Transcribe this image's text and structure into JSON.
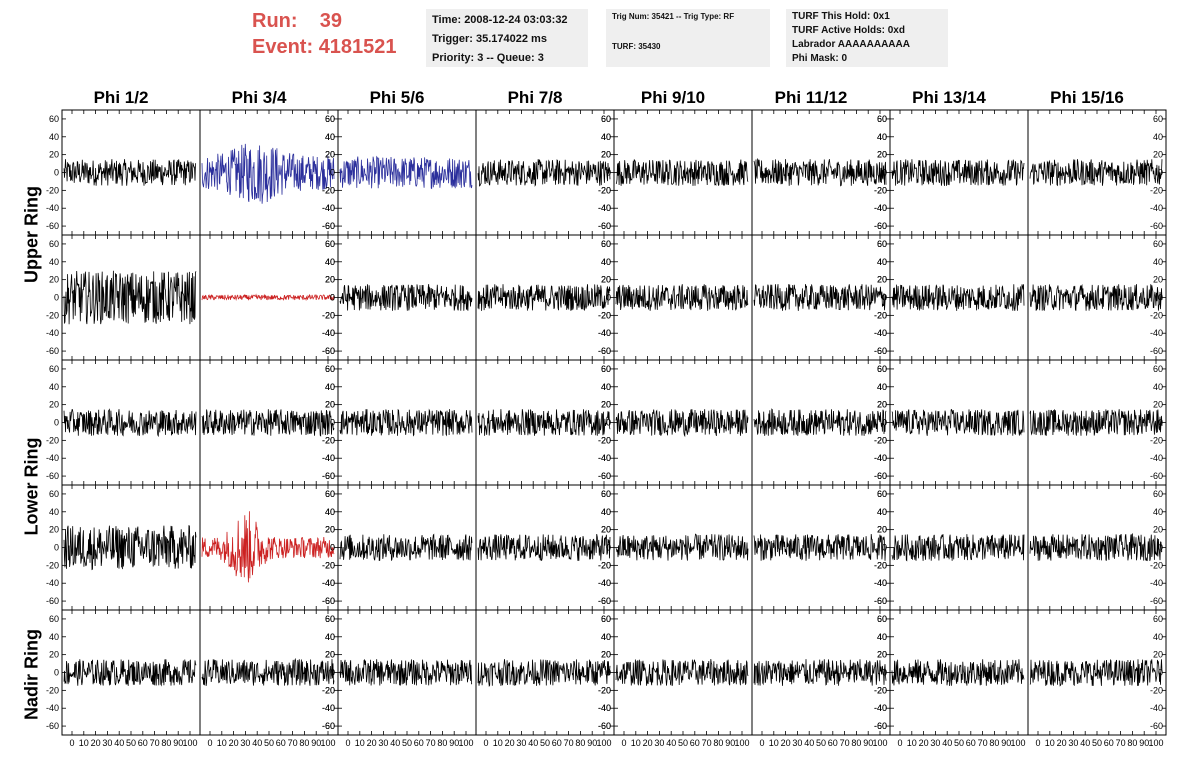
{
  "run_info": {
    "run_label": "Run:",
    "run_value": "39",
    "event_label": "Event:",
    "event_value": "4181521"
  },
  "time_box": {
    "time": "Time: 2008-12-24 03:03:32",
    "trigger": "Trigger: 35.174022 ms",
    "priority": "Priority: 3 -- Queue: 3"
  },
  "trig_box": {
    "trig": "Trig Num: 35421 -- Trig Type: RF",
    "turf": "TURF: 35430"
  },
  "turf_box": {
    "hold": "TURF This Hold: 0x1",
    "active": "TURF Active Holds: 0xd",
    "labrador": "Labrador AAAAAAAAAA",
    "mask": "Phi Mask: 0"
  },
  "columns": [
    "Phi 1/2",
    "Phi 3/4",
    "Phi 5/6",
    "Phi 7/8",
    "Phi 9/10",
    "Phi 11/12",
    "Phi 13/14",
    "Phi 15/16"
  ],
  "rings": [
    "Upper Ring",
    "Lower Ring",
    "Nadir Ring"
  ],
  "colors": {
    "header_red": "#d9534f",
    "trace_black": "#000000",
    "trace_blue": "#2b2f9c",
    "trace_red": "#cc2222"
  },
  "chart_data": {
    "type": "line",
    "rows": 5,
    "cols": 8,
    "ylim": [
      -70,
      70
    ],
    "y_ticks": [
      -60,
      -40,
      -20,
      0,
      20,
      40,
      60
    ],
    "x_ticks": [
      "0",
      "10",
      "20",
      "30",
      "40",
      "50",
      "60",
      "70",
      "80",
      "90",
      "100"
    ],
    "highlighted_panels": [
      {
        "row": 0,
        "col": 1,
        "color": "blue"
      },
      {
        "row": 0,
        "col": 2,
        "color": "blue"
      },
      {
        "row": 1,
        "col": 1,
        "color": "red"
      },
      {
        "row": 3,
        "col": 1,
        "color": "red"
      }
    ]
  }
}
